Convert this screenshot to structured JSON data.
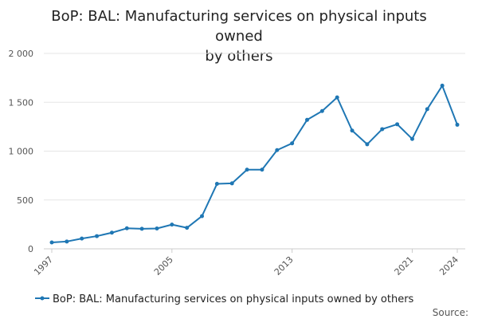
{
  "chart_data": {
    "type": "line",
    "title": "BoP: BAL: Manufacturing services on physical inputs owned by others",
    "title_lines": [
      "BoP: BAL: Manufacturing services on physical inputs owned",
      "by others"
    ],
    "xlabel": "",
    "ylabel": "",
    "xlim": [
      1997,
      2024
    ],
    "ylim": [
      0,
      2000
    ],
    "y_ticks": [
      0,
      500,
      1000,
      1500,
      2000
    ],
    "y_tick_labels": [
      "0",
      "500",
      "1 000",
      "1 500",
      "2 000"
    ],
    "x_ticks": [
      1997,
      2005,
      2013,
      2021,
      2024
    ],
    "x_tick_labels": [
      "1997",
      "2005",
      "2013",
      "2021",
      "2024"
    ],
    "grid": true,
    "legend_position": "bottom",
    "series": [
      {
        "name": "BoP: BAL: Manufacturing services on physical inputs owned by others",
        "color": "#1f77b4",
        "x": [
          1997,
          1998,
          1999,
          2000,
          2001,
          2002,
          2003,
          2004,
          2005,
          2006,
          2007,
          2008,
          2009,
          2010,
          2011,
          2012,
          2013,
          2014,
          2015,
          2016,
          2017,
          2018,
          2019,
          2020,
          2021,
          2022,
          2023,
          2024
        ],
        "values": [
          65,
          75,
          105,
          130,
          165,
          210,
          205,
          208,
          248,
          215,
          335,
          665,
          670,
          810,
          810,
          1010,
          1080,
          1320,
          1410,
          1550,
          1210,
          1070,
          1225,
          1275,
          1125,
          1430,
          1670,
          1270
        ]
      }
    ]
  },
  "source_label": "Source:"
}
